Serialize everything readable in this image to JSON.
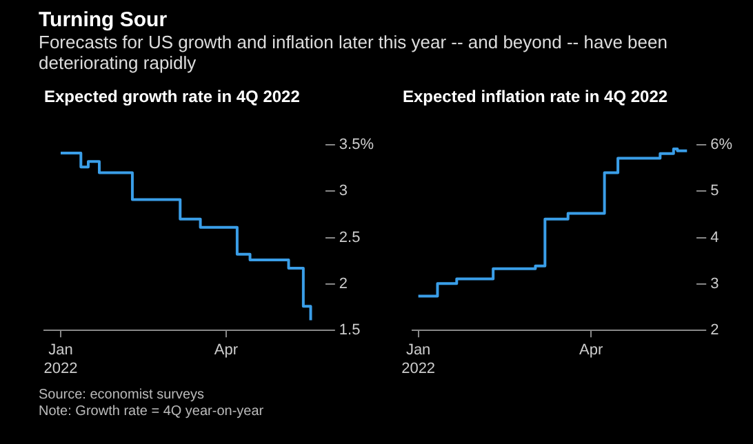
{
  "chart_data": [
    {
      "type": "step",
      "title": "Expected growth rate in 4Q 2022",
      "annotations": [
        "Turning Sour",
        "Forecasts for US growth and inflation later this year -- and beyond -- have been deteriorating rapidly",
        "Source: economist surveys",
        "Note: Growth rate = 4Q year-on-year"
      ],
      "x": [
        "2022-01-01",
        "2022-01-12",
        "2022-01-16",
        "2022-01-22",
        "2022-02-09",
        "2022-03-07",
        "2022-03-18",
        "2022-04-07",
        "2022-04-14",
        "2022-05-05",
        "2022-05-13",
        "2022-05-17"
      ],
      "series": [
        {
          "color": "#3a9ee8",
          "values": [
            3.41,
            3.26,
            3.32,
            3.2,
            2.91,
            2.7,
            2.61,
            2.32,
            2.26,
            2.17,
            1.76,
            1.61
          ]
        }
      ],
      "xlim": [
        "2021-12-23",
        "2022-05-25"
      ],
      "xticks": [
        {
          "value": "2022-01-01",
          "label": "Jan\n2022"
        },
        {
          "value": "2022-04-01",
          "label": "Apr"
        }
      ],
      "ylim": [
        1.5,
        3.5
      ],
      "yticks": [
        1.5,
        2,
        2.5,
        3,
        {
          "value": 3.5,
          "label": "3.5%"
        }
      ],
      "grid": false,
      "legend": false
    },
    {
      "type": "step",
      "title": "Expected inflation rate in 4Q 2022",
      "x": [
        "2022-01-01",
        "2022-01-11",
        "2022-01-21",
        "2022-02-09",
        "2022-03-03",
        "2022-03-08",
        "2022-03-20",
        "2022-04-08",
        "2022-04-15",
        "2022-05-07",
        "2022-05-14",
        "2022-05-16",
        "2022-05-21"
      ],
      "series": [
        {
          "color": "#3a9ee8",
          "values": [
            2.74,
            3.01,
            3.11,
            3.33,
            3.39,
            4.4,
            4.52,
            5.4,
            5.71,
            5.81,
            5.91,
            5.87,
            5.87
          ]
        }
      ],
      "xlim": [
        "2021-12-29",
        "2022-05-26"
      ],
      "xticks": [
        {
          "value": "2022-01-01",
          "label": "Jan\n2022"
        },
        {
          "value": "2022-04-01",
          "label": "Apr"
        }
      ],
      "ylim": [
        2,
        6
      ],
      "yticks": [
        2,
        3,
        4,
        5,
        {
          "value": 6,
          "label": "6%"
        }
      ],
      "grid": false,
      "legend": false
    }
  ]
}
